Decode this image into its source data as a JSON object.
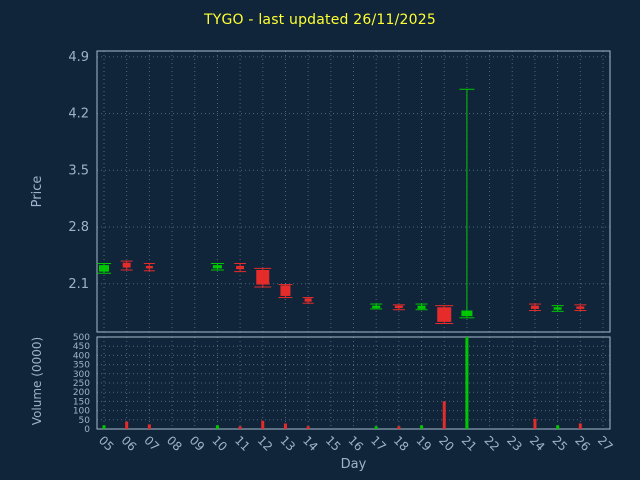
{
  "chart_data": {
    "type": "candlestick",
    "title": "TYGO - last updated 26/11/2025",
    "xlabel": "Day",
    "legend": "none",
    "grid": true,
    "price_axis": {
      "label": "Price",
      "ticks": [
        2.1,
        2.8,
        3.5,
        4.2,
        4.9
      ],
      "min": 1.505,
      "max": 4.972
    },
    "volume_axis": {
      "label": "Volume (0000)",
      "ticks": [
        0,
        50,
        100,
        150,
        200,
        250,
        300,
        350,
        400,
        450,
        500
      ],
      "min": 0,
      "max": 500
    },
    "x_axis": {
      "min": 5,
      "max": 27,
      "labels": [
        "05",
        "06",
        "07",
        "08",
        "09",
        "10",
        "11",
        "12",
        "13",
        "14",
        "15",
        "16",
        "17",
        "18",
        "19",
        "20",
        "21",
        "22",
        "23",
        "24",
        "25",
        "26",
        "27"
      ]
    },
    "candles": [
      {
        "day": 5,
        "open": 2.25,
        "high": 2.35,
        "low": 2.23,
        "close": 2.33,
        "volume": 20,
        "w": 10
      },
      {
        "day": 6,
        "open": 2.36,
        "high": 2.38,
        "low": 2.27,
        "close": 2.3,
        "volume": 40,
        "w": 8
      },
      {
        "day": 7,
        "open": 2.32,
        "high": 2.35,
        "low": 2.26,
        "close": 2.29,
        "volume": 25,
        "w": 7
      },
      {
        "day": 10,
        "open": 2.29,
        "high": 2.35,
        "low": 2.27,
        "close": 2.33,
        "volume": 20,
        "w": 9
      },
      {
        "day": 11,
        "open": 2.32,
        "high": 2.35,
        "low": 2.25,
        "close": 2.28,
        "volume": 15,
        "w": 8
      },
      {
        "day": 12,
        "open": 2.27,
        "high": 2.29,
        "low": 2.06,
        "close": 2.09,
        "volume": 45,
        "w": 13
      },
      {
        "day": 13,
        "open": 2.08,
        "high": 2.09,
        "low": 1.93,
        "close": 1.95,
        "volume": 30,
        "w": 10
      },
      {
        "day": 14,
        "open": 1.92,
        "high": 1.93,
        "low": 1.86,
        "close": 1.88,
        "volume": 15,
        "w": 7
      },
      {
        "day": 17,
        "open": 1.8,
        "high": 1.85,
        "low": 1.79,
        "close": 1.83,
        "volume": 15,
        "w": 8
      },
      {
        "day": 18,
        "open": 1.83,
        "high": 1.84,
        "low": 1.78,
        "close": 1.8,
        "volume": 15,
        "w": 8
      },
      {
        "day": 19,
        "open": 1.79,
        "high": 1.85,
        "low": 1.78,
        "close": 1.83,
        "volume": 20,
        "w": 8
      },
      {
        "day": 20,
        "open": 1.81,
        "high": 1.83,
        "low": 1.61,
        "close": 1.63,
        "volume": 150,
        "w": 14
      },
      {
        "day": 21,
        "open": 1.7,
        "high": 4.5,
        "low": 1.68,
        "close": 1.77,
        "volume": 500,
        "w": 11
      },
      {
        "day": 24,
        "open": 1.83,
        "high": 1.85,
        "low": 1.77,
        "close": 1.79,
        "volume": 55,
        "w": 8
      },
      {
        "day": 25,
        "open": 1.78,
        "high": 1.83,
        "low": 1.76,
        "close": 1.81,
        "volume": 20,
        "w": 8
      },
      {
        "day": 26,
        "open": 1.82,
        "high": 1.84,
        "low": 1.77,
        "close": 1.79,
        "volume": 30,
        "w": 8
      }
    ],
    "colors": {
      "background": "#102539",
      "title": "#ffff33",
      "text": "#9cb3cb",
      "grid": "#92a8bf",
      "frame": "#a9bcce",
      "up": "#00c800",
      "down": "#e62b2b"
    }
  }
}
